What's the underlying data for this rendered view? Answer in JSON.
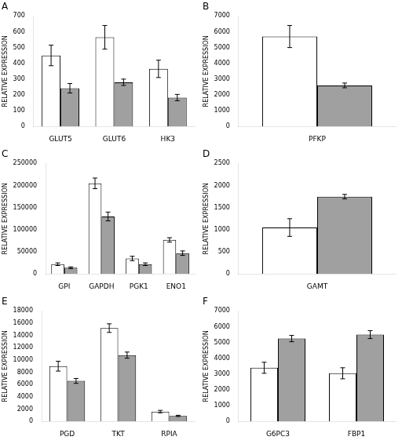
{
  "chart_data": [
    {
      "type": "bar",
      "title": "A",
      "ylabel": "RELATIVE EXPRESSION",
      "categories": [
        "GLUT5",
        "GLUT6",
        "HK3"
      ],
      "series": [
        {
          "color": "#ffffff",
          "values": [
            450,
            565,
            365
          ],
          "errors": [
            65,
            75,
            55
          ]
        },
        {
          "color": "#a0a0a0",
          "values": [
            242,
            280,
            183
          ],
          "errors": [
            30,
            20,
            20
          ]
        }
      ],
      "ylim": [
        0,
        700
      ],
      "yticks": [
        0,
        100,
        200,
        300,
        400,
        500,
        600,
        700
      ],
      "grid": false
    },
    {
      "type": "bar",
      "title": "B",
      "ylabel": "RELATIVE EXPRESSION",
      "categories": [
        "PFKP"
      ],
      "series": [
        {
          "color": "#ffffff",
          "values": [
            5700
          ],
          "errors": [
            700
          ]
        },
        {
          "color": "#a0a0a0",
          "values": [
            2600
          ],
          "errors": [
            150
          ]
        }
      ],
      "ylim": [
        0,
        7000
      ],
      "yticks": [
        0,
        1000,
        2000,
        3000,
        4000,
        5000,
        6000,
        7000
      ],
      "grid": false
    },
    {
      "type": "bar",
      "title": "C",
      "ylabel": "RELATIVE EXPRESSION",
      "categories": [
        "GPI",
        "GAPDH",
        "PGK1",
        "ENO1"
      ],
      "series": [
        {
          "color": "#ffffff",
          "values": [
            22000,
            205000,
            35000,
            77000
          ],
          "errors": [
            3000,
            12000,
            5000,
            5000
          ]
        },
        {
          "color": "#a0a0a0",
          "values": [
            14000,
            130000,
            22000,
            47000
          ],
          "errors": [
            2000,
            10000,
            3000,
            5000
          ]
        }
      ],
      "ylim": [
        0,
        250000
      ],
      "yticks": [
        0,
        50000,
        100000,
        150000,
        200000,
        250000
      ],
      "grid": false
    },
    {
      "type": "bar",
      "title": "D",
      "ylabel": "RELATIVE EXPRESSION",
      "categories": [
        "GAMT"
      ],
      "series": [
        {
          "color": "#ffffff",
          "values": [
            1050
          ],
          "errors": [
            200
          ]
        },
        {
          "color": "#a0a0a0",
          "values": [
            1750
          ],
          "errors": [
            50
          ]
        }
      ],
      "ylim": [
        0,
        2500
      ],
      "yticks": [
        0,
        500,
        1000,
        1500,
        2000,
        2500
      ],
      "grid": false
    },
    {
      "type": "bar",
      "title": "E",
      "ylabel": "RELATIVE EXPRESSION",
      "categories": [
        "PGD",
        "TKT",
        "RPIA"
      ],
      "series": [
        {
          "color": "#ffffff",
          "values": [
            9000,
            15200,
            1600
          ],
          "errors": [
            800,
            700,
            200
          ]
        },
        {
          "color": "#a0a0a0",
          "values": [
            6600,
            10800,
            900
          ],
          "errors": [
            400,
            500,
            100
          ]
        }
      ],
      "ylim": [
        0,
        18000
      ],
      "yticks": [
        0,
        2000,
        4000,
        6000,
        8000,
        10000,
        12000,
        14000,
        16000,
        18000
      ],
      "grid": false
    },
    {
      "type": "bar",
      "title": "F",
      "ylabel": "RELATIVE EXPRESSION",
      "categories": [
        "G6PC3",
        "FBP1"
      ],
      "series": [
        {
          "color": "#ffffff",
          "values": [
            3400,
            3050
          ],
          "errors": [
            350,
            350
          ]
        },
        {
          "color": "#a0a0a0",
          "values": [
            5250,
            5500
          ],
          "errors": [
            200,
            250
          ]
        }
      ],
      "ylim": [
        0,
        7000
      ],
      "yticks": [
        0,
        1000,
        2000,
        3000,
        4000,
        5000,
        6000,
        7000
      ],
      "grid": false
    }
  ]
}
